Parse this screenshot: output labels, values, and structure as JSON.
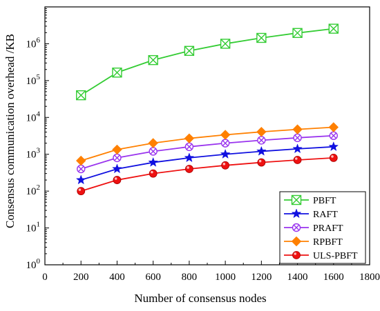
{
  "chart_data": {
    "type": "line",
    "title": "",
    "xlabel": "Number of consensus nodes",
    "ylabel": "Consensus communication overhead /KB",
    "x_scale": "linear",
    "y_scale": "log",
    "xlim": [
      0,
      1800
    ],
    "ylim": [
      1,
      10000000
    ],
    "x_ticks": [
      0,
      200,
      400,
      600,
      800,
      1000,
      1200,
      1400,
      1600,
      1800
    ],
    "x_tick_labels": [
      "0",
      "200",
      "400",
      "600",
      "800",
      "1000",
      "1200",
      "1400",
      "1600",
      "1800"
    ],
    "y_ticks": [
      1,
      10,
      100,
      1000,
      10000,
      100000,
      1000000
    ],
    "y_tick_labels": [
      {
        "base": "10",
        "exp": "0"
      },
      {
        "base": "10",
        "exp": "1"
      },
      {
        "base": "10",
        "exp": "2"
      },
      {
        "base": "10",
        "exp": "3"
      },
      {
        "base": "10",
        "exp": "4"
      },
      {
        "base": "10",
        "exp": "5"
      },
      {
        "base": "10",
        "exp": "6"
      }
    ],
    "grid": false,
    "legend_position": "bottom-right",
    "x": [
      200,
      400,
      600,
      800,
      1000,
      1200,
      1400,
      1600
    ],
    "series": [
      {
        "name": "PBFT",
        "color": "#33cc33",
        "marker": "box-x",
        "values": [
          40000,
          165000,
          360000,
          640000,
          1000000,
          1440000,
          1960000,
          2560000
        ]
      },
      {
        "name": "RAFT",
        "color": "#1010e0",
        "marker": "star",
        "values": [
          200,
          400,
          600,
          800,
          1000,
          1200,
          1400,
          1600
        ]
      },
      {
        "name": "PRAFT",
        "color": "#9933ee",
        "marker": "circle-x",
        "values": [
          400,
          800,
          1200,
          1600,
          2000,
          2400,
          2800,
          3200
        ]
      },
      {
        "name": "RPBFT",
        "color": "#ff8000",
        "marker": "diamond",
        "values": [
          670,
          1340,
          2010,
          2700,
          3380,
          4060,
          4740,
          5420
        ]
      },
      {
        "name": "ULS-PBFT",
        "color": "#ee1111",
        "marker": "ball",
        "values": [
          100,
          200,
          300,
          400,
          500,
          600,
          700,
          800
        ]
      }
    ]
  }
}
